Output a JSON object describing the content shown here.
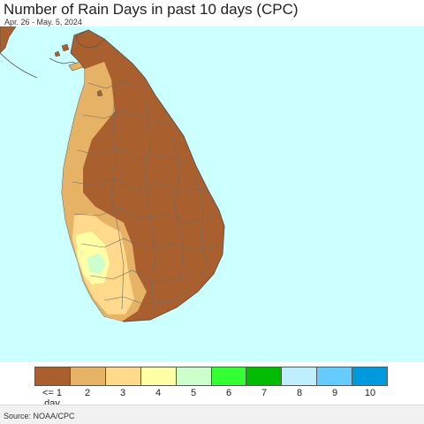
{
  "header": {
    "title": "Number of Rain Days in past 10 days (CPC)",
    "date_range": "Apr. 26 - May. 5, 2024"
  },
  "map": {
    "ocean_color": "#ccffff",
    "land_border_color": "#555555",
    "region": "Sri Lanka",
    "dominant_class": "<= 1 day",
    "dominant_color": "#a9602e"
  },
  "legend": {
    "items": [
      {
        "label": "<= 1 day",
        "color": "#a9602e"
      },
      {
        "label": "2",
        "color": "#e6b366"
      },
      {
        "label": "3",
        "color": "#ffd98c"
      },
      {
        "label": "4",
        "color": "#ffffa6"
      },
      {
        "label": "5",
        "color": "#ccffcc"
      },
      {
        "label": "6",
        "color": "#33ff33"
      },
      {
        "label": "7",
        "color": "#00bb00"
      },
      {
        "label": "8",
        "color": "#bfefff"
      },
      {
        "label": "9",
        "color": "#66ccff"
      },
      {
        "label": "10",
        "color": "#0099dd"
      }
    ]
  },
  "footer": {
    "source": "Source: NOAA/CPC"
  }
}
